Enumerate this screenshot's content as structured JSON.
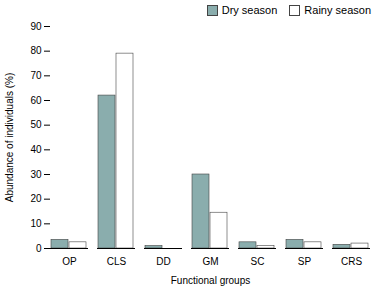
{
  "chart_data": {
    "type": "bar",
    "xlabel": "Functional groups",
    "ylabel": "Abundance of individuals (%)",
    "categories": [
      "OP",
      "CLS",
      "DD",
      "GM",
      "SC",
      "SP",
      "CRS"
    ],
    "series": [
      {
        "name": "Dry season",
        "color": "#8aadad",
        "values": [
          3.5,
          62.0,
          1.0,
          30.0,
          2.5,
          3.5,
          1.5
        ]
      },
      {
        "name": "Rainy season",
        "color": "#ffffff",
        "values": [
          2.5,
          79.0,
          0.0,
          14.5,
          1.0,
          2.5,
          2.0
        ]
      }
    ],
    "ylim": [
      0,
      90
    ],
    "yticks": [
      0,
      10,
      20,
      30,
      40,
      50,
      60,
      70,
      80,
      90
    ],
    "grid": false,
    "legend": "upper right"
  }
}
